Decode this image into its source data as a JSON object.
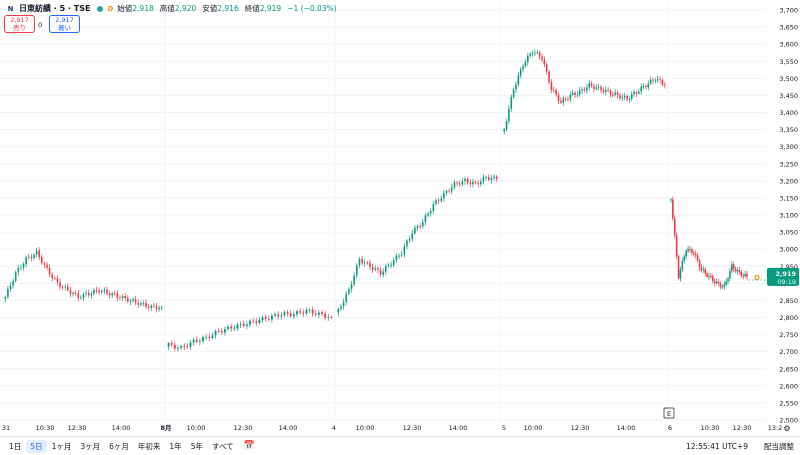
{
  "legend": {
    "logo": "N",
    "symbol": "日東紡績 · 5 · TSE",
    "open_label": "始値",
    "open": "2,918",
    "high_label": "高値",
    "high": "2,920",
    "low_label": "安値",
    "low": "2,916",
    "close_label": "終値",
    "close": "2,919",
    "change": "−1 (−0.03%)"
  },
  "trade": {
    "sell_price": "2,917",
    "sell_label": "売り",
    "spread": "0",
    "buy_price": "2,917",
    "buy_label": "買い"
  },
  "price_tag": {
    "price": "2,919",
    "time": "09:19",
    "badge": "D"
  },
  "earnings_marker": "E",
  "settings_icon": "gear-icon",
  "colors": {
    "up": "#089981",
    "down": "#f23645",
    "tag": "#089981",
    "dividend": "#ff9800"
  },
  "chart_data": {
    "type": "candlestick",
    "ylim": [
      2500,
      3700
    ],
    "yticks": [
      2500,
      2550,
      2600,
      2650,
      2700,
      2750,
      2800,
      2850,
      2900,
      2950,
      3000,
      3050,
      3100,
      3150,
      3200,
      3250,
      3300,
      3350,
      3400,
      3450,
      3500,
      3550,
      3600,
      3650,
      3700
    ],
    "ytick_labels": [
      "2,500",
      "2,550",
      "2,600",
      "2,650",
      "2,700",
      "2,750",
      "2,800",
      "2,850",
      "2,900",
      "2,950",
      "3,000",
      "3,050",
      "3,100",
      "3,150",
      "3,200",
      "3,250",
      "3,300",
      "3,350",
      "3,400",
      "3,450",
      "3,500",
      "3,550",
      "3,600",
      "3,650",
      "3,700"
    ],
    "x_ticks": [
      "31",
      "10:30",
      "12:30",
      "14:00",
      "8月",
      "10:00",
      "12:30",
      "14:00",
      "4",
      "10:00",
      "12:30",
      "14:00",
      "5",
      "10:00",
      "12:30",
      "14:00",
      "6",
      "10:30",
      "12:30",
      "13:2"
    ],
    "x_tick_bold": [
      false,
      false,
      false,
      false,
      true,
      false,
      false,
      false,
      false,
      false,
      false,
      false,
      false,
      false,
      false,
      false,
      false,
      false,
      false,
      false
    ],
    "last_price": 2919,
    "sessions": [
      {
        "name": "7/31",
        "anchors": [
          2860,
          2930,
          2970,
          2990,
          2940,
          2900,
          2880,
          2860,
          2870,
          2880,
          2870,
          2860,
          2850,
          2840,
          2830,
          2830
        ]
      },
      {
        "name": "8/1",
        "anchors": [
          2720,
          2710,
          2730,
          2740,
          2760,
          2770,
          2780,
          2790,
          2800,
          2810,
          2810,
          2820,
          2810,
          2800
        ]
      },
      {
        "name": "8/4",
        "anchors": [
          2820,
          2880,
          2970,
          2950,
          2930,
          2960,
          2990,
          3050,
          3080,
          3130,
          3160,
          3190,
          3200,
          3190,
          3210,
          3205
        ]
      },
      {
        "name": "8/5",
        "anchors": [
          3350,
          3470,
          3540,
          3580,
          3560,
          3470,
          3430,
          3450,
          3460,
          3480,
          3470,
          3460,
          3450,
          3440,
          3460,
          3480,
          3500,
          3480
        ]
      },
      {
        "name": "8/6",
        "anchors": [
          3150,
          2920,
          3000,
          2990,
          2940,
          2920,
          2900,
          2890,
          2950,
          2930,
          2919
        ]
      }
    ]
  },
  "time_ranges": [
    "1日",
    "5日",
    "1ヶ月",
    "3ヶ月",
    "6ヶ月",
    "年初来",
    "1年",
    "5年",
    "すべて"
  ],
  "active_range": "5日",
  "clock": "12:55:41 UTC+9",
  "adjust_label": "配当調整"
}
